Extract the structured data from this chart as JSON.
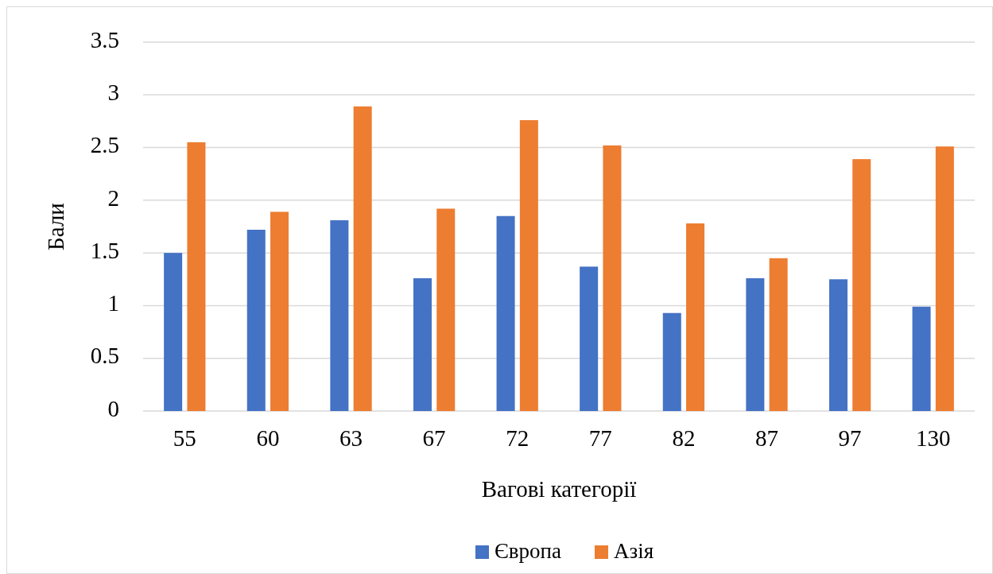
{
  "chart_data": {
    "type": "bar",
    "xlabel": "Вагові категорії",
    "ylabel": "Бали",
    "categories": [
      "55",
      "60",
      "63",
      "67",
      "72",
      "77",
      "82",
      "87",
      "97",
      "130"
    ],
    "series": [
      {
        "name": "Європа",
        "color": "#4472c4",
        "values": [
          1.5,
          1.72,
          1.81,
          1.26,
          1.85,
          1.37,
          0.93,
          1.26,
          1.25,
          0.99
        ]
      },
      {
        "name": "Азія",
        "color": "#ed7d31",
        "values": [
          2.55,
          1.89,
          2.89,
          1.92,
          2.76,
          2.52,
          1.78,
          1.45,
          2.39,
          2.51
        ]
      }
    ],
    "ylim": [
      0,
      3.5
    ],
    "yticks": [
      0,
      0.5,
      1,
      1.5,
      2,
      2.5,
      3,
      3.5
    ],
    "grid": "y",
    "legend": "bottom"
  }
}
